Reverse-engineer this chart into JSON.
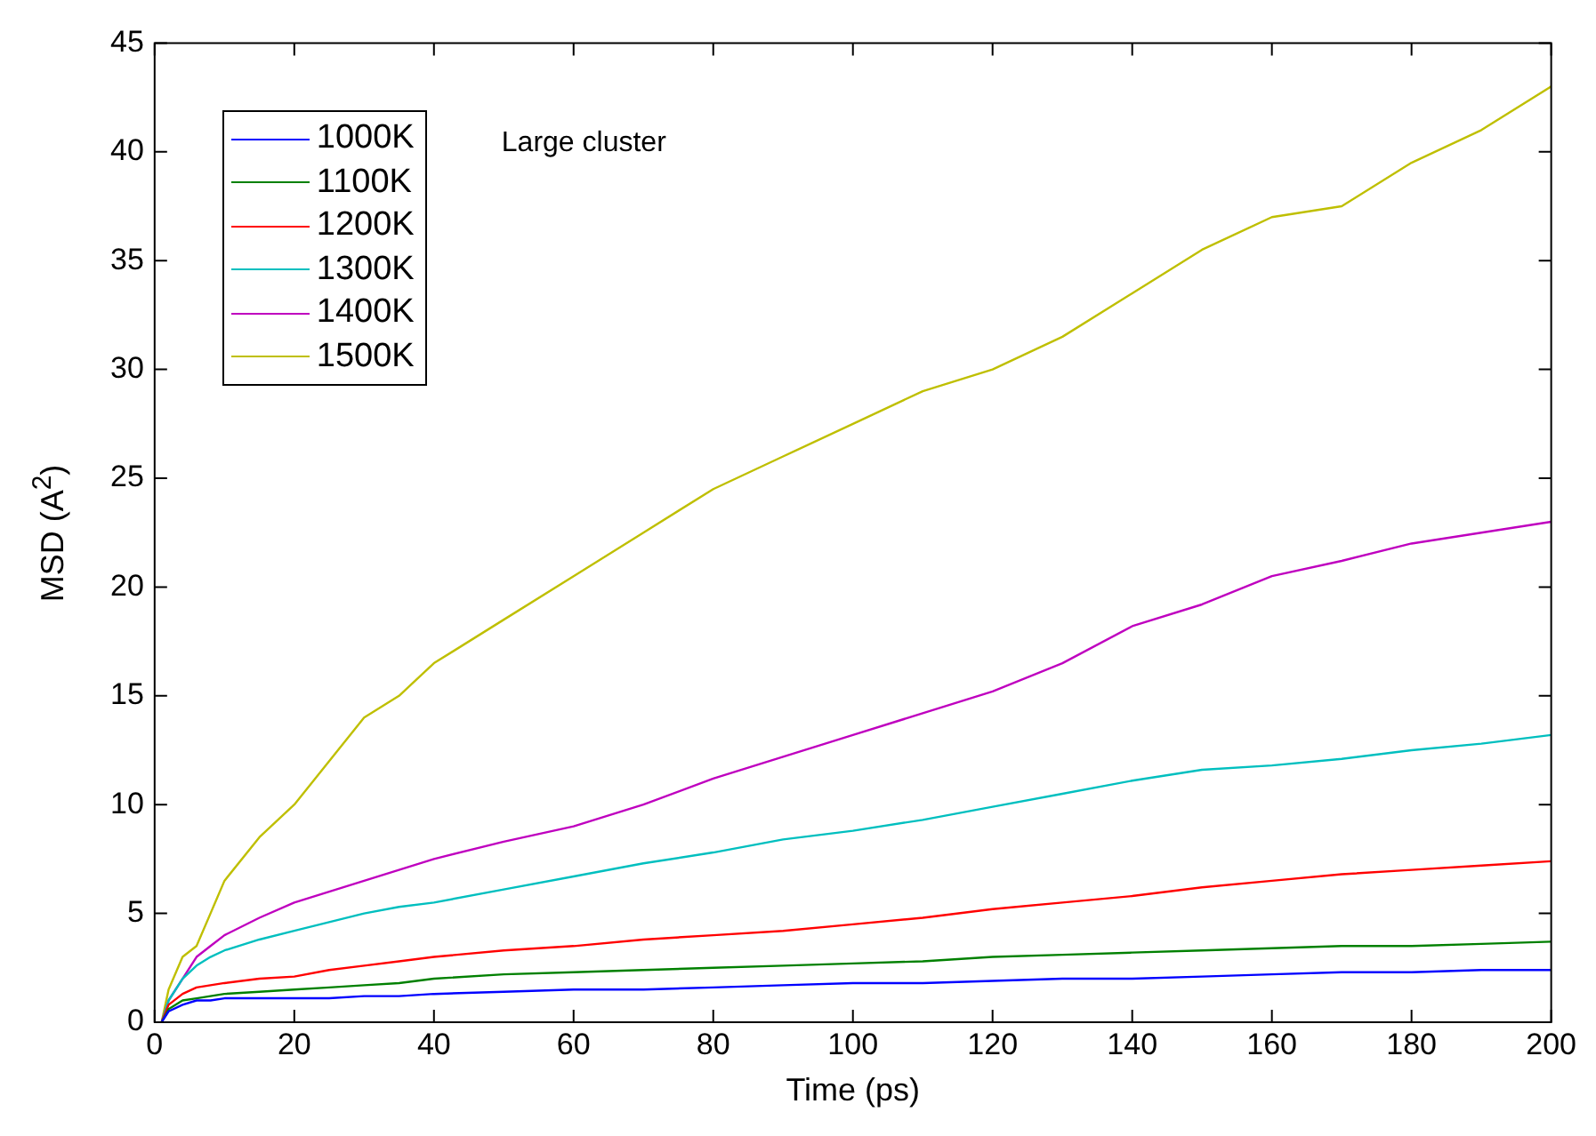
{
  "chart_data": {
    "type": "line",
    "xlabel": "Time (ps)",
    "ylabel": "MSD (A$^{2}$)",
    "annotations": [
      "Large cluster"
    ],
    "x": [
      1,
      2,
      4,
      6,
      8,
      10,
      15,
      20,
      25,
      30,
      35,
      40,
      50,
      60,
      70,
      80,
      90,
      100,
      110,
      120,
      130,
      140,
      150,
      160,
      170,
      180,
      190,
      200
    ],
    "xlim": [
      0,
      200
    ],
    "xticks": [
      0,
      20,
      40,
      60,
      80,
      100,
      120,
      140,
      160,
      180,
      200
    ],
    "ylim": [
      0,
      45
    ],
    "yticks": [
      0,
      5,
      10,
      15,
      20,
      25,
      30,
      35,
      40,
      45
    ],
    "grid": false,
    "legend": "top left",
    "marker": "none",
    "line_style": "solid",
    "series": [
      {
        "name": "1000K",
        "color": "#0000ff",
        "values": [
          0,
          0.5,
          0.8,
          1,
          1,
          1.1,
          1.1,
          1.1,
          1.1,
          1.2,
          1.2,
          1.3,
          1.4,
          1.5,
          1.5,
          1.6,
          1.7,
          1.8,
          1.8,
          1.9,
          2,
          2,
          2.1,
          2.2,
          2.3,
          2.3,
          2.4,
          2.4
        ]
      },
      {
        "name": "1100K",
        "color": "#008000",
        "values": [
          0,
          0.6,
          1,
          1.1,
          1.2,
          1.3,
          1.4,
          1.5,
          1.6,
          1.7,
          1.8,
          2,
          2.2,
          2.3,
          2.4,
          2.5,
          2.6,
          2.7,
          2.8,
          3,
          3.1,
          3.2,
          3.3,
          3.4,
          3.5,
          3.5,
          3.6,
          3.7
        ]
      },
      {
        "name": "1200K",
        "color": "#ff0000",
        "values": [
          0,
          0.8,
          1.3,
          1.6,
          1.7,
          1.8,
          2,
          2.1,
          2.4,
          2.6,
          2.8,
          3,
          3.3,
          3.5,
          3.8,
          4,
          4.2,
          4.5,
          4.8,
          5.2,
          5.5,
          5.8,
          6.2,
          6.5,
          6.8,
          7,
          7.2,
          7.4
        ]
      },
      {
        "name": "1300K",
        "color": "#00bfbf",
        "values": [
          0,
          1,
          2,
          2.6,
          3,
          3.3,
          3.8,
          4.2,
          4.6,
          5,
          5.3,
          5.5,
          6.1,
          6.7,
          7.3,
          7.8,
          8.4,
          8.8,
          9.3,
          9.9,
          10.5,
          11.1,
          11.6,
          11.8,
          12.1,
          12.5,
          12.8,
          13.2
        ]
      },
      {
        "name": "1400K",
        "color": "#bf00bf",
        "values": [
          0,
          1,
          2,
          3,
          3.5,
          4,
          4.8,
          5.5,
          6,
          6.5,
          7,
          7.5,
          8.3,
          9,
          10,
          11.2,
          12.2,
          13.2,
          14.2,
          15.2,
          16.5,
          18.2,
          19.2,
          20.5,
          21.2,
          22,
          22.5,
          23
        ]
      },
      {
        "name": "1500K",
        "color": "#bfbf00",
        "values": [
          0,
          1.5,
          3,
          3.5,
          5,
          6.5,
          8.5,
          10,
          12,
          14,
          15,
          16.5,
          18.5,
          20.5,
          22.5,
          24.5,
          26,
          27.5,
          29,
          30,
          31.5,
          33.5,
          35.5,
          37,
          37.5,
          39.5,
          41,
          43
        ]
      }
    ]
  }
}
